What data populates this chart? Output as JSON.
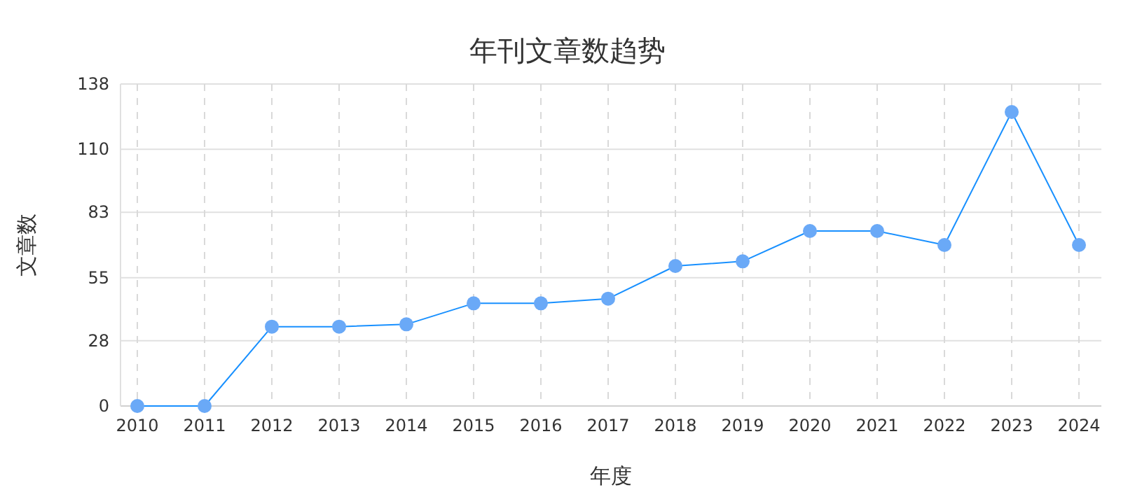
{
  "chart_data": {
    "type": "line",
    "title": "年刊文章数趋势",
    "xlabel": "年度",
    "ylabel": "文章数",
    "categories": [
      "2010",
      "2011",
      "2012",
      "2013",
      "2014",
      "2015",
      "2016",
      "2017",
      "2018",
      "2019",
      "2020",
      "2021",
      "2022",
      "2023",
      "2024"
    ],
    "series": [
      {
        "color": "#1890ff",
        "values": [
          0,
          0,
          34,
          34,
          35,
          44,
          44,
          46,
          60,
          62,
          75,
          75,
          69,
          126,
          69
        ]
      }
    ],
    "ylim": [
      0,
      138
    ],
    "yticks": [
      0,
      28,
      55,
      83,
      110,
      138
    ],
    "grid": true,
    "marker": "circle",
    "line_style": "solid"
  }
}
